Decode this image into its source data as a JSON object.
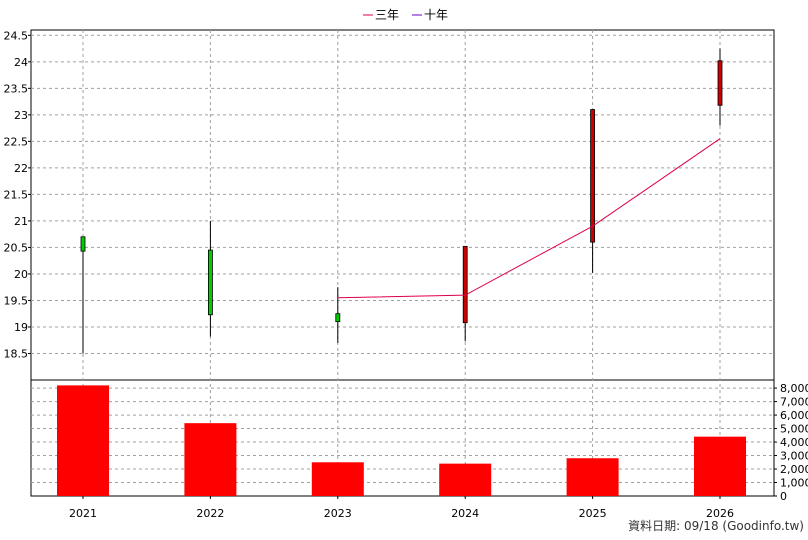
{
  "chart_data": {
    "type": "candlestick",
    "categories": [
      "2021",
      "2022",
      "2023",
      "2024",
      "2025",
      "2026"
    ],
    "price": {
      "ylim": [
        18.0,
        24.6
      ],
      "ticks": [
        18.5,
        19,
        19.5,
        20,
        20.5,
        21,
        21.5,
        22,
        22.5,
        23,
        23.5,
        24,
        24.5
      ],
      "tick_labels": [
        "18.5",
        "19",
        "19.5",
        "20",
        "20.5",
        "21",
        "21.5",
        "22",
        "22.5",
        "23",
        "23.5",
        "24",
        "24.5"
      ],
      "candles": [
        {
          "x": "2021",
          "open": 20.7,
          "close": 20.43,
          "high": 20.7,
          "low": 18.5,
          "color": "#00cc00"
        },
        {
          "x": "2022",
          "open": 20.45,
          "close": 19.23,
          "high": 21.0,
          "low": 18.82,
          "color": "#00cc00"
        },
        {
          "x": "2023",
          "open": 19.25,
          "close": 19.1,
          "high": 19.75,
          "low": 18.7,
          "color": "#00cc00"
        },
        {
          "x": "2024",
          "open": 19.08,
          "close": 20.52,
          "high": 20.52,
          "low": 18.73,
          "color": "#cc0000"
        },
        {
          "x": "2025",
          "open": 20.6,
          "close": 23.1,
          "high": 23.1,
          "low": 20.02,
          "color": "#cc0000"
        },
        {
          "x": "2026",
          "open": 23.18,
          "close": 24.02,
          "high": 24.25,
          "low": 22.8,
          "color": "#cc0000"
        }
      ]
    },
    "series": [
      {
        "name": "三年",
        "color": "#e0004a",
        "values": [
          null,
          null,
          19.55,
          19.6,
          20.9,
          22.55
        ]
      },
      {
        "name": "十年",
        "color": "#6600cc",
        "values": [
          null,
          null,
          null,
          null,
          null,
          null
        ]
      }
    ],
    "volume": {
      "type": "bar",
      "values": [
        8200,
        5400,
        2500,
        2400,
        2800,
        4400
      ],
      "color": "#ff0000",
      "ylim": [
        0,
        8600
      ],
      "ticks": [
        0,
        1000,
        2000,
        3000,
        4000,
        5000,
        6000,
        7000,
        8000
      ],
      "tick_labels": [
        "0",
        "1,000",
        "2,000",
        "3,000",
        "4,000",
        "5,000",
        "6,000",
        "7,000",
        "8,000"
      ]
    },
    "grid": true,
    "legend_position": "top-center"
  },
  "footer": "資料日期: 09/18  (Goodinfo.tw)"
}
